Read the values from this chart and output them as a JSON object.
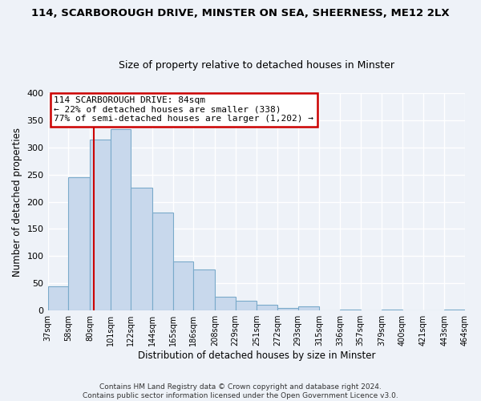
{
  "title": "114, SCARBOROUGH DRIVE, MINSTER ON SEA, SHEERNESS, ME12 2LX",
  "subtitle": "Size of property relative to detached houses in Minster",
  "xlabel": "Distribution of detached houses by size in Minster",
  "ylabel": "Number of detached properties",
  "bar_color": "#c8d8ec",
  "bar_edge_color": "#7aaaca",
  "background_color": "#eef2f8",
  "grid_color": "#ffffff",
  "bin_edges": [
    37,
    58,
    80,
    101,
    122,
    144,
    165,
    186,
    208,
    229,
    251,
    272,
    293,
    315,
    336,
    357,
    379,
    400,
    421,
    443,
    464
  ],
  "bar_heights": [
    44,
    245,
    314,
    333,
    226,
    180,
    90,
    75,
    25,
    18,
    10,
    5,
    7,
    0,
    2,
    0,
    1,
    0,
    0,
    2
  ],
  "tick_labels": [
    "37sqm",
    "58sqm",
    "80sqm",
    "101sqm",
    "122sqm",
    "144sqm",
    "165sqm",
    "186sqm",
    "208sqm",
    "229sqm",
    "251sqm",
    "272sqm",
    "293sqm",
    "315sqm",
    "336sqm",
    "357sqm",
    "379sqm",
    "400sqm",
    "421sqm",
    "443sqm",
    "464sqm"
  ],
  "ylim": [
    0,
    400
  ],
  "yticks": [
    0,
    50,
    100,
    150,
    200,
    250,
    300,
    350,
    400
  ],
  "vline_x": 84,
  "vline_color": "#cc0000",
  "annotation_line1": "114 SCARBOROUGH DRIVE: 84sqm",
  "annotation_line2": "← 22% of detached houses are smaller (338)",
  "annotation_line3": "77% of semi-detached houses are larger (1,202) →",
  "annotation_box_color": "#cc0000",
  "footer_line1": "Contains HM Land Registry data © Crown copyright and database right 2024.",
  "footer_line2": "Contains public sector information licensed under the Open Government Licence v3.0."
}
